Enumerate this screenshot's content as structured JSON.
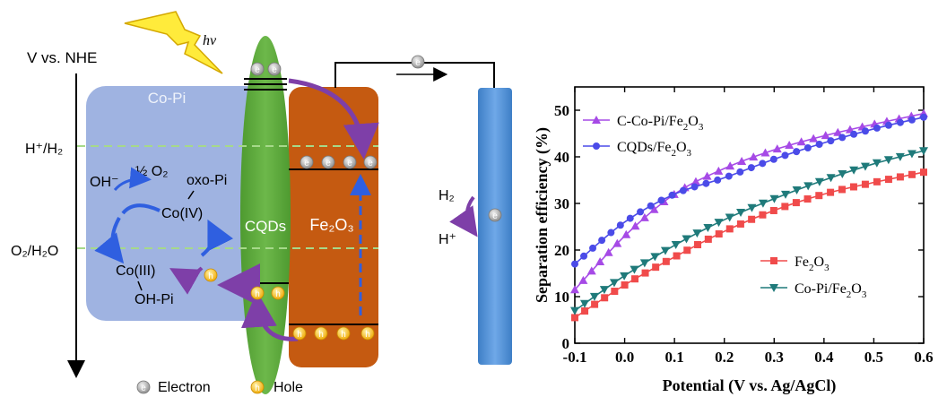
{
  "colors": {
    "copi_box": "#8EA6DC",
    "cqds": "#5FA83E",
    "fe2o3": "#C55A11",
    "electrode": "#4E8FD6",
    "arrow_purple": "#7E3FA8",
    "arrow_blue": "#2F5FE0",
    "level_dash": "#A6D98A",
    "hole": "#F5B800",
    "electron": "#9A9A9A"
  },
  "diagram": {
    "axis_label": "V vs. NHE",
    "h_level": "H⁺/H₂",
    "o_level": "O₂/H₂O",
    "light": "hv",
    "copi_title": "Co-Pi",
    "oh_minus": "OH⁻",
    "half_o2": "½ O₂",
    "oxo_pi": "oxo-Pi",
    "co_iv": "Co(IV)",
    "co_iii": "Co(III)",
    "oh_pi": "OH-Pi",
    "cqds_label": "CQDs",
    "fe2o3_label": "Fe₂O₃",
    "h2": "H₂",
    "h_plus": "H⁺",
    "electron_symbol": "e",
    "hole_symbol": "h",
    "legend_electron": "Electron",
    "legend_hole": "Hole"
  },
  "chart_data": {
    "type": "line",
    "xlabel": "Potential (V vs. Ag/AgCl)",
    "ylabel": "Separation efficiency (%)",
    "xlim": [
      -0.1,
      0.6
    ],
    "ylim": [
      0,
      55
    ],
    "xticks": [
      -0.1,
      0.0,
      0.1,
      0.2,
      0.3,
      0.4,
      0.5,
      0.6
    ],
    "xtick_labels": [
      "-0.1",
      "0.0",
      "0.1",
      "0.2",
      "0.3",
      "0.4",
      "0.5",
      "0.6"
    ],
    "yticks": [
      0,
      10,
      20,
      30,
      40,
      50
    ],
    "ytick_labels": [
      "0",
      "10",
      "20",
      "30",
      "40",
      "50"
    ],
    "grid": false,
    "series": [
      {
        "name": "C-Co-Pi/Fe2O3",
        "legend_main": "C-Co-Pi/Fe",
        "legend_sub": "2",
        "legend_tail": "O",
        "legend_sub2": "3",
        "color": "#A64AE6",
        "marker": "triangle-up",
        "x": [
          -0.1,
          0.0,
          0.1,
          0.2,
          0.3,
          0.4,
          0.5,
          0.6
        ],
        "y": [
          11.5,
          23,
          32,
          37.5,
          41.5,
          44.5,
          47,
          49.3
        ]
      },
      {
        "name": "CQDs/Fe2O3",
        "legend_main": "CQDs/Fe",
        "legend_sub": "2",
        "legend_tail": "O",
        "legend_sub2": "3",
        "color": "#4B4BE8",
        "marker": "circle",
        "x": [
          -0.1,
          0.0,
          0.1,
          0.2,
          0.3,
          0.4,
          0.5,
          0.6
        ],
        "y": [
          17,
          26,
          32,
          35.5,
          39.5,
          43,
          46,
          48.5
        ]
      },
      {
        "name": "Fe2O3",
        "legend_main": "Fe",
        "legend_sub": "2",
        "legend_tail": "O",
        "legend_sub2": "3",
        "color": "#F04B4B",
        "marker": "square",
        "x": [
          -0.1,
          0.0,
          0.1,
          0.2,
          0.3,
          0.4,
          0.5,
          0.6
        ],
        "y": [
          5.5,
          12.5,
          18.5,
          24,
          28.5,
          32,
          34.5,
          36.7
        ]
      },
      {
        "name": "Co-Pi/Fe2O3",
        "legend_main": "Co-Pi/Fe",
        "legend_sub": "2",
        "legend_tail": "O",
        "legend_sub2": "3",
        "color": "#1F7A7A",
        "marker": "triangle-down",
        "x": [
          -0.1,
          0.0,
          0.1,
          0.2,
          0.3,
          0.4,
          0.5,
          0.6
        ],
        "y": [
          7,
          14.5,
          21,
          26.5,
          31,
          35,
          38.5,
          41.3
        ]
      }
    ]
  }
}
